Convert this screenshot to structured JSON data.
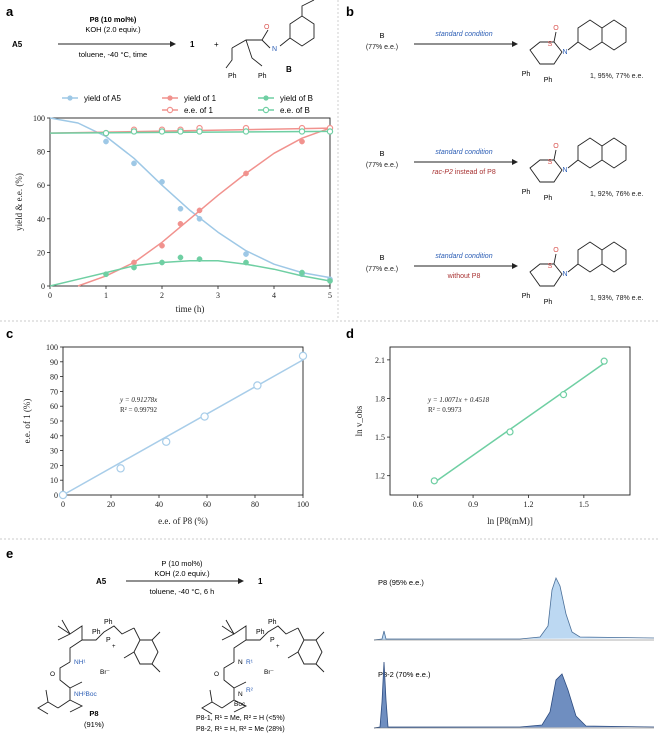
{
  "panels": {
    "a": {
      "label": "a",
      "scheme": {
        "reactant": "A5",
        "reagent1": "P8 (10 mol%)",
        "reagent2": "KOH (2.0 equiv.)",
        "conditions": "toluene, -40 °C, time",
        "product1": "1",
        "plus": "+",
        "product2": "B"
      },
      "chart_data": {
        "type": "scatter",
        "xlabel": "time (h)",
        "ylabel": "yield & e.e. (%)",
        "xlim": [
          0,
          5
        ],
        "ylim": [
          0,
          100
        ],
        "xticks": [
          "0",
          "1",
          "2",
          "3",
          "4",
          "5"
        ],
        "yticks": [
          "0",
          "20",
          "40",
          "60",
          "80",
          "100"
        ],
        "series": [
          {
            "name": "yield of A5",
            "color": "#9ec8e6",
            "marker": "filled",
            "x": [
              1,
              1.5,
              2,
              2.33,
              2.67,
              3.5,
              4.5,
              5
            ],
            "y": [
              86,
              73,
              62,
              46,
              40,
              19,
              7,
              4
            ],
            "fit_x": [
              0,
              0.5,
              1,
              1.5,
              2,
              2.5,
              3,
              3.5,
              4,
              4.5,
              5
            ],
            "fit_y": [
              100,
              97,
              89,
              76,
              60,
              45,
              32,
              21,
              13,
              8,
              5
            ]
          },
          {
            "name": "yield of 1",
            "color": "#f1928e",
            "marker": "filled",
            "x": [
              1.5,
              2,
              2.33,
              2.67,
              3.5,
              4.5
            ],
            "y": [
              14,
              24,
              37,
              45,
              67,
              86
            ],
            "fit_x": [
              0.5,
              1,
              1.5,
              2,
              2.5,
              3,
              3.5,
              4,
              4.5,
              5
            ],
            "fit_y": [
              0,
              6,
              14,
              26,
              40,
              54,
              67,
              79,
              88,
              94
            ]
          },
          {
            "name": "yield of B",
            "color": "#6fcfa3",
            "marker": "filled",
            "x": [
              1,
              1.5,
              2,
              2.33,
              2.67,
              3.5,
              4.5,
              5
            ],
            "y": [
              7,
              11,
              14,
              17,
              16,
              14,
              8,
              3
            ],
            "fit_x": [
              0,
              0.5,
              1,
              1.5,
              2,
              2.5,
              3,
              3.5,
              4,
              4.5,
              5
            ],
            "fit_y": [
              0,
              4,
              8,
              12,
              14,
              15,
              15,
              13,
              10,
              6,
              3
            ]
          },
          {
            "name": "e.e. of 1",
            "color": "#f1928e",
            "marker": "open",
            "x": [
              1,
              1.5,
              2,
              2.33,
              2.67,
              3.5,
              4.5,
              5
            ],
            "y": [
              91,
              93,
              93,
              93,
              94,
              94,
              94,
              94
            ],
            "fit_x": [
              0,
              5
            ],
            "fit_y": [
              91,
              94
            ]
          },
          {
            "name": "e.e. of B",
            "color": "#6fcfa3",
            "marker": "open",
            "x": [
              1,
              1.5,
              2,
              2.33,
              2.67,
              3.5,
              4.5,
              5
            ],
            "y": [
              91,
              92,
              92,
              92,
              92,
              92,
              92,
              92
            ],
            "fit_x": [
              0,
              5
            ],
            "fit_y": [
              91,
              92
            ]
          }
        ]
      }
    },
    "b": {
      "label": "b",
      "rows": [
        {
          "reactant": "B",
          "ee": "(77% e.e.)",
          "condition": "standard condition",
          "note": "",
          "note_prefix": "",
          "result": "1, 95%, 77% e.e."
        },
        {
          "reactant": "B",
          "ee": "(77% e.e.)",
          "condition": "standard condition",
          "note_prefix": "rac-P2",
          "note": " instead of P8",
          "result": "1, 92%, 76% e.e."
        },
        {
          "reactant": "B",
          "ee": "(77% e.e.)",
          "condition": "standard condition",
          "note_prefix": "",
          "note": "without P8",
          "result": "1, 93%, 78% e.e."
        }
      ],
      "atom_S": "S",
      "atom_O": "O",
      "atom_N": "N",
      "ph": "Ph"
    },
    "c": {
      "label": "c",
      "chart_data": {
        "type": "scatter",
        "xlabel": "e.e. of P8 (%)",
        "ylabel": "e.e. of 1 (%)",
        "xlim": [
          0,
          100
        ],
        "ylim": [
          0,
          100
        ],
        "xticks": [
          "0",
          "20",
          "40",
          "60",
          "80",
          "100"
        ],
        "yticks": [
          "0",
          "10",
          "20",
          "30",
          "40",
          "50",
          "60",
          "70",
          "80",
          "90",
          "100"
        ],
        "equation": "y = 0.91278x",
        "r2": "R² = 0.99792",
        "color": "#a8cde9",
        "x": [
          0,
          24,
          43,
          59,
          81,
          100
        ],
        "y": [
          0,
          18,
          36,
          53,
          74,
          94
        ],
        "fit_x": [
          0,
          100
        ],
        "fit_y": [
          0,
          91.28
        ]
      }
    },
    "d": {
      "label": "d",
      "chart_data": {
        "type": "scatter",
        "xlabel": "ln [P8(mM)]",
        "ylabel": "ln v_obs",
        "xlim": [
          0.45,
          1.75
        ],
        "ylim": [
          1.05,
          2.2
        ],
        "xticks": [
          "0.6",
          "0.9",
          "1.2",
          "1.5"
        ],
        "yticks": [
          "1.2",
          "1.5",
          "1.8",
          "2.1"
        ],
        "equation": "y = 1.0071x + 0.4518",
        "r2": "R² = 0.9973",
        "color": "#6fcfa3",
        "x": [
          0.69,
          1.1,
          1.39,
          1.61
        ],
        "y": [
          1.16,
          1.54,
          1.83,
          2.09
        ],
        "fit_x": [
          0.69,
          1.61
        ],
        "fit_y": [
          1.147,
          2.073
        ]
      }
    },
    "e": {
      "label": "e",
      "scheme": {
        "reactant": "A5",
        "reagent1": "P (10 mol%)",
        "reagent2": "KOH (2.0 equiv.)",
        "conditions": "toluene, -40 °C, 6 h",
        "product": "1"
      },
      "catalyst": {
        "name": "P8",
        "yield": "(91%)"
      },
      "variants": [
        "P8-1, R¹ = Me, R² = H (<5%)",
        "P8-2, R¹ = H, R² = Me (28%)"
      ],
      "struct_text": {
        "ph": "Ph",
        "p": "P",
        "plus": "+",
        "br": "Br⁻",
        "nh1": "NH¹",
        "nhboc": "NH²Boc",
        "boc": "Boc",
        "o": "O",
        "n": "N",
        "r1": "R¹",
        "r2": "R²"
      },
      "hplc": [
        {
          "title": "P8 (95% e.e.)",
          "fill": "#bcd8f2",
          "stroke": "#4a6f99"
        },
        {
          "title": "P8-2 (70% e.e.)",
          "fill": "#6f8ec0",
          "stroke": "#2d4c80"
        }
      ]
    }
  }
}
